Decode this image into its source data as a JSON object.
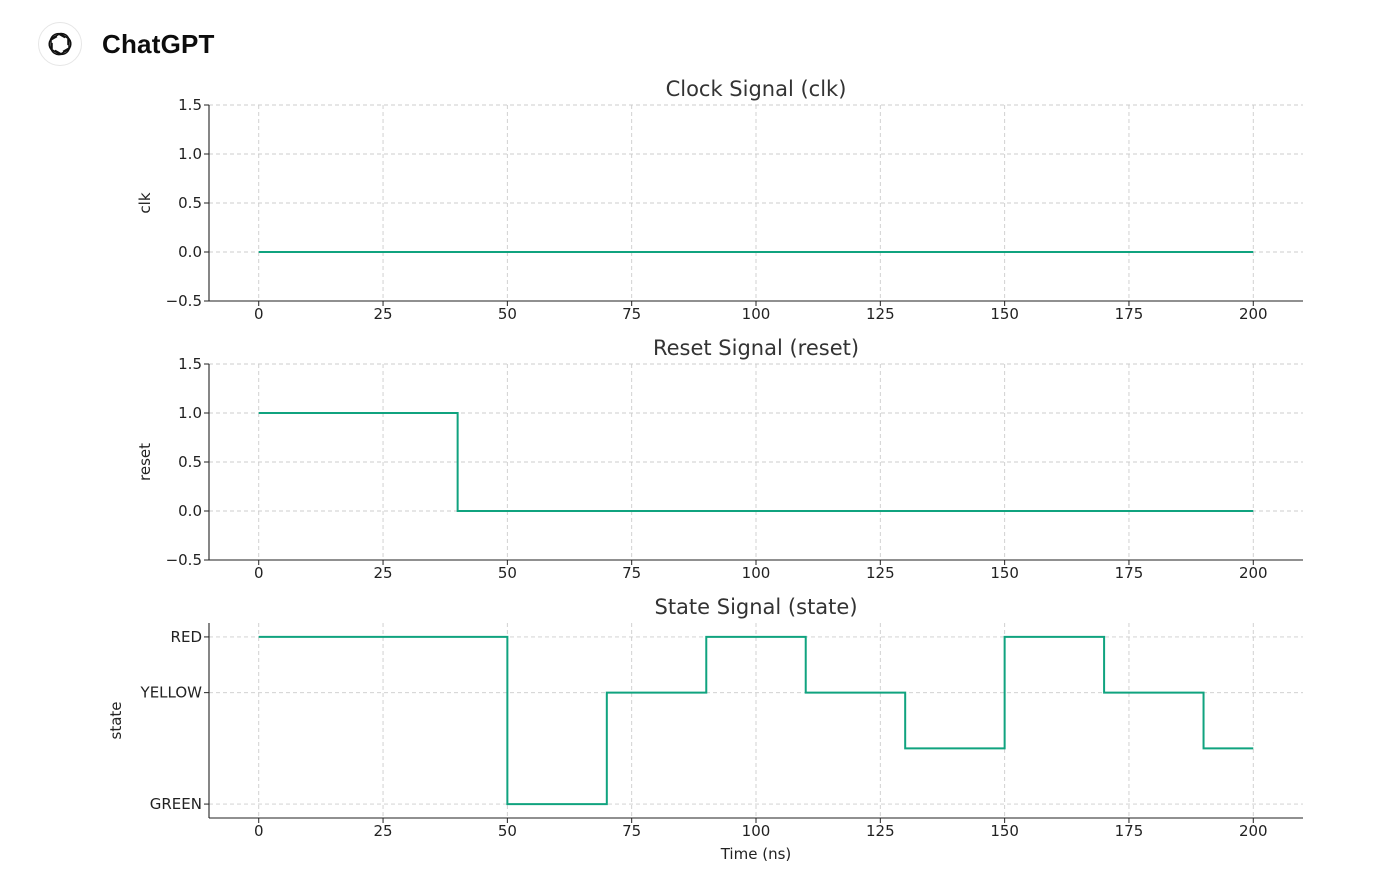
{
  "header": {
    "brand": "ChatGPT",
    "logo_icon": "openai-logo-icon"
  },
  "chart_data": [
    {
      "type": "line",
      "step": "post",
      "title": "Clock Signal (clk)",
      "xlabel": "",
      "ylabel": "clk",
      "xlim": [
        -10,
        210
      ],
      "ylim": [
        -0.5,
        1.5
      ],
      "xticks": [
        "0",
        "25",
        "50",
        "75",
        "100",
        "125",
        "150",
        "175",
        "200"
      ],
      "yticks": [
        "1.5",
        "1.0",
        "0.5",
        "0.0",
        "−0.5"
      ],
      "grid": true,
      "color": "#10a37f",
      "series": [
        {
          "x": [
            0,
            200
          ],
          "y": [
            0,
            0
          ]
        }
      ]
    },
    {
      "type": "line",
      "step": "post",
      "title": "Reset Signal (reset)",
      "xlabel": "",
      "ylabel": "reset",
      "xlim": [
        -10,
        210
      ],
      "ylim": [
        -0.5,
        1.5
      ],
      "xticks": [
        "0",
        "25",
        "50",
        "75",
        "100",
        "125",
        "150",
        "175",
        "200"
      ],
      "yticks": [
        "1.5",
        "1.0",
        "0.5",
        "0.0",
        "−0.5"
      ],
      "grid": true,
      "color": "#10a37f",
      "series": [
        {
          "x": [
            0,
            40,
            200
          ],
          "y": [
            1,
            0,
            0
          ]
        }
      ]
    },
    {
      "type": "line",
      "step": "post",
      "title": "State Signal (state)",
      "xlabel": "Time (ns)",
      "ylabel": "state",
      "xlim": [
        -10,
        210
      ],
      "ylim": [
        -0.25,
        3.25
      ],
      "xticks": [
        "0",
        "25",
        "50",
        "75",
        "100",
        "125",
        "150",
        "175",
        "200"
      ],
      "yticks": [
        "RED",
        "YELLOW",
        "GREEN"
      ],
      "ytick_values": [
        3,
        2,
        0
      ],
      "grid": true,
      "color": "#10a37f",
      "series": [
        {
          "x": [
            0,
            50,
            70,
            90,
            110,
            130,
            150,
            170,
            190,
            200
          ],
          "y": [
            3,
            0,
            2,
            3,
            2,
            1,
            3,
            2,
            1,
            1
          ]
        }
      ]
    }
  ]
}
